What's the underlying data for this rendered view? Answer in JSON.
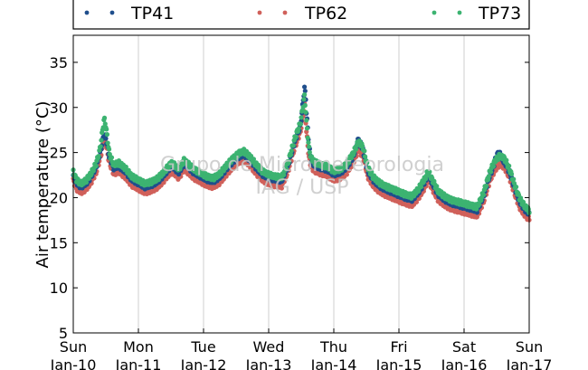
{
  "chart_data": {
    "type": "scatter",
    "title": "",
    "ylabel": "Air temperature (°C)",
    "xlabel": "",
    "ylim": [
      5,
      38
    ],
    "yticks": [
      5,
      10,
      15,
      20,
      25,
      30,
      35
    ],
    "xlim": [
      0,
      7
    ],
    "grid": "vertical",
    "legend_position": "top",
    "watermark": [
      "Grupo de Micrometeorologia",
      "IAG / USP"
    ],
    "xticks": [
      {
        "day": "Sun",
        "date": "Jan-10"
      },
      {
        "day": "Mon",
        "date": "Jan-11"
      },
      {
        "day": "Tue",
        "date": "Jan-12"
      },
      {
        "day": "Wed",
        "date": "Jan-13"
      },
      {
        "day": "Thu",
        "date": "Jan-14"
      },
      {
        "day": "Fri",
        "date": "Jan-15"
      },
      {
        "day": "Sat",
        "date": "Jan-16"
      },
      {
        "day": "Sun",
        "date": "Jan-17"
      }
    ],
    "base_curve": [
      [
        0.0,
        22.5
      ],
      [
        0.05,
        21.6
      ],
      [
        0.12,
        21.2
      ],
      [
        0.2,
        21.6
      ],
      [
        0.27,
        22.3
      ],
      [
        0.35,
        23.4
      ],
      [
        0.42,
        25.2
      ],
      [
        0.47,
        27.0
      ],
      [
        0.5,
        26.6
      ],
      [
        0.55,
        24.6
      ],
      [
        0.62,
        23.3
      ],
      [
        0.7,
        23.5
      ],
      [
        0.8,
        22.9
      ],
      [
        0.9,
        22.0
      ],
      [
        1.0,
        21.6
      ],
      [
        1.1,
        21.2
      ],
      [
        1.2,
        21.4
      ],
      [
        1.3,
        21.8
      ],
      [
        1.4,
        22.6
      ],
      [
        1.48,
        23.3
      ],
      [
        1.52,
        23.5
      ],
      [
        1.62,
        22.8
      ],
      [
        1.7,
        23.8
      ],
      [
        1.75,
        23.5
      ],
      [
        1.85,
        22.8
      ],
      [
        1.95,
        22.4
      ],
      [
        2.05,
        22.0
      ],
      [
        2.15,
        21.8
      ],
      [
        2.25,
        22.3
      ],
      [
        2.35,
        23.2
      ],
      [
        2.45,
        24.0
      ],
      [
        2.55,
        24.6
      ],
      [
        2.62,
        24.8
      ],
      [
        2.7,
        24.3
      ],
      [
        2.8,
        23.4
      ],
      [
        2.9,
        22.6
      ],
      [
        3.0,
        22.2
      ],
      [
        3.1,
        22.0
      ],
      [
        3.2,
        21.9
      ],
      [
        3.3,
        23.6
      ],
      [
        3.4,
        26.2
      ],
      [
        3.48,
        27.8
      ],
      [
        3.52,
        28.8
      ],
      [
        3.55,
        29.6
      ],
      [
        3.58,
        26.5
      ],
      [
        3.62,
        24.4
      ],
      [
        3.7,
        23.6
      ],
      [
        3.8,
        23.3
      ],
      [
        3.9,
        23.1
      ],
      [
        4.0,
        22.6
      ],
      [
        4.1,
        22.8
      ],
      [
        4.2,
        23.4
      ],
      [
        4.3,
        24.6
      ],
      [
        4.38,
        25.9
      ],
      [
        4.45,
        25.2
      ],
      [
        4.52,
        23.0
      ],
      [
        4.6,
        22.0
      ],
      [
        4.7,
        21.3
      ],
      [
        4.8,
        20.9
      ],
      [
        4.9,
        20.6
      ],
      [
        5.0,
        20.3
      ],
      [
        5.1,
        20.0
      ],
      [
        5.2,
        19.8
      ],
      [
        5.3,
        20.6
      ],
      [
        5.4,
        21.8
      ],
      [
        5.45,
        22.6
      ],
      [
        5.5,
        21.8
      ],
      [
        5.6,
        20.4
      ],
      [
        5.7,
        19.8
      ],
      [
        5.8,
        19.4
      ],
      [
        5.9,
        19.2
      ],
      [
        6.0,
        19.0
      ],
      [
        6.1,
        18.8
      ],
      [
        6.2,
        18.6
      ],
      [
        6.3,
        20.2
      ],
      [
        6.4,
        22.6
      ],
      [
        6.48,
        23.8
      ],
      [
        6.55,
        24.3
      ],
      [
        6.62,
        24.0
      ],
      [
        6.7,
        22.8
      ],
      [
        6.78,
        21.0
      ],
      [
        6.85,
        19.6
      ],
      [
        6.92,
        18.8
      ],
      [
        7.0,
        18.2
      ]
    ],
    "series": [
      {
        "name": "TP41",
        "color": "#1f4e8c",
        "offset": 0.0,
        "peaks": [
          [
            3.57,
            31.0
          ],
          [
            6.52,
            24.9
          ],
          [
            4.38,
            26.5
          ]
        ]
      },
      {
        "name": "TP62",
        "color": "#d0605a",
        "offset": -0.6,
        "peaks": [
          [
            3.57,
            28.5
          ],
          [
            0.48,
            26.2
          ]
        ]
      },
      {
        "name": "TP73",
        "color": "#3cb371",
        "offset": 0.35,
        "peaks": [
          [
            0.48,
            28.6
          ],
          [
            3.57,
            29.6
          ]
        ]
      }
    ]
  }
}
